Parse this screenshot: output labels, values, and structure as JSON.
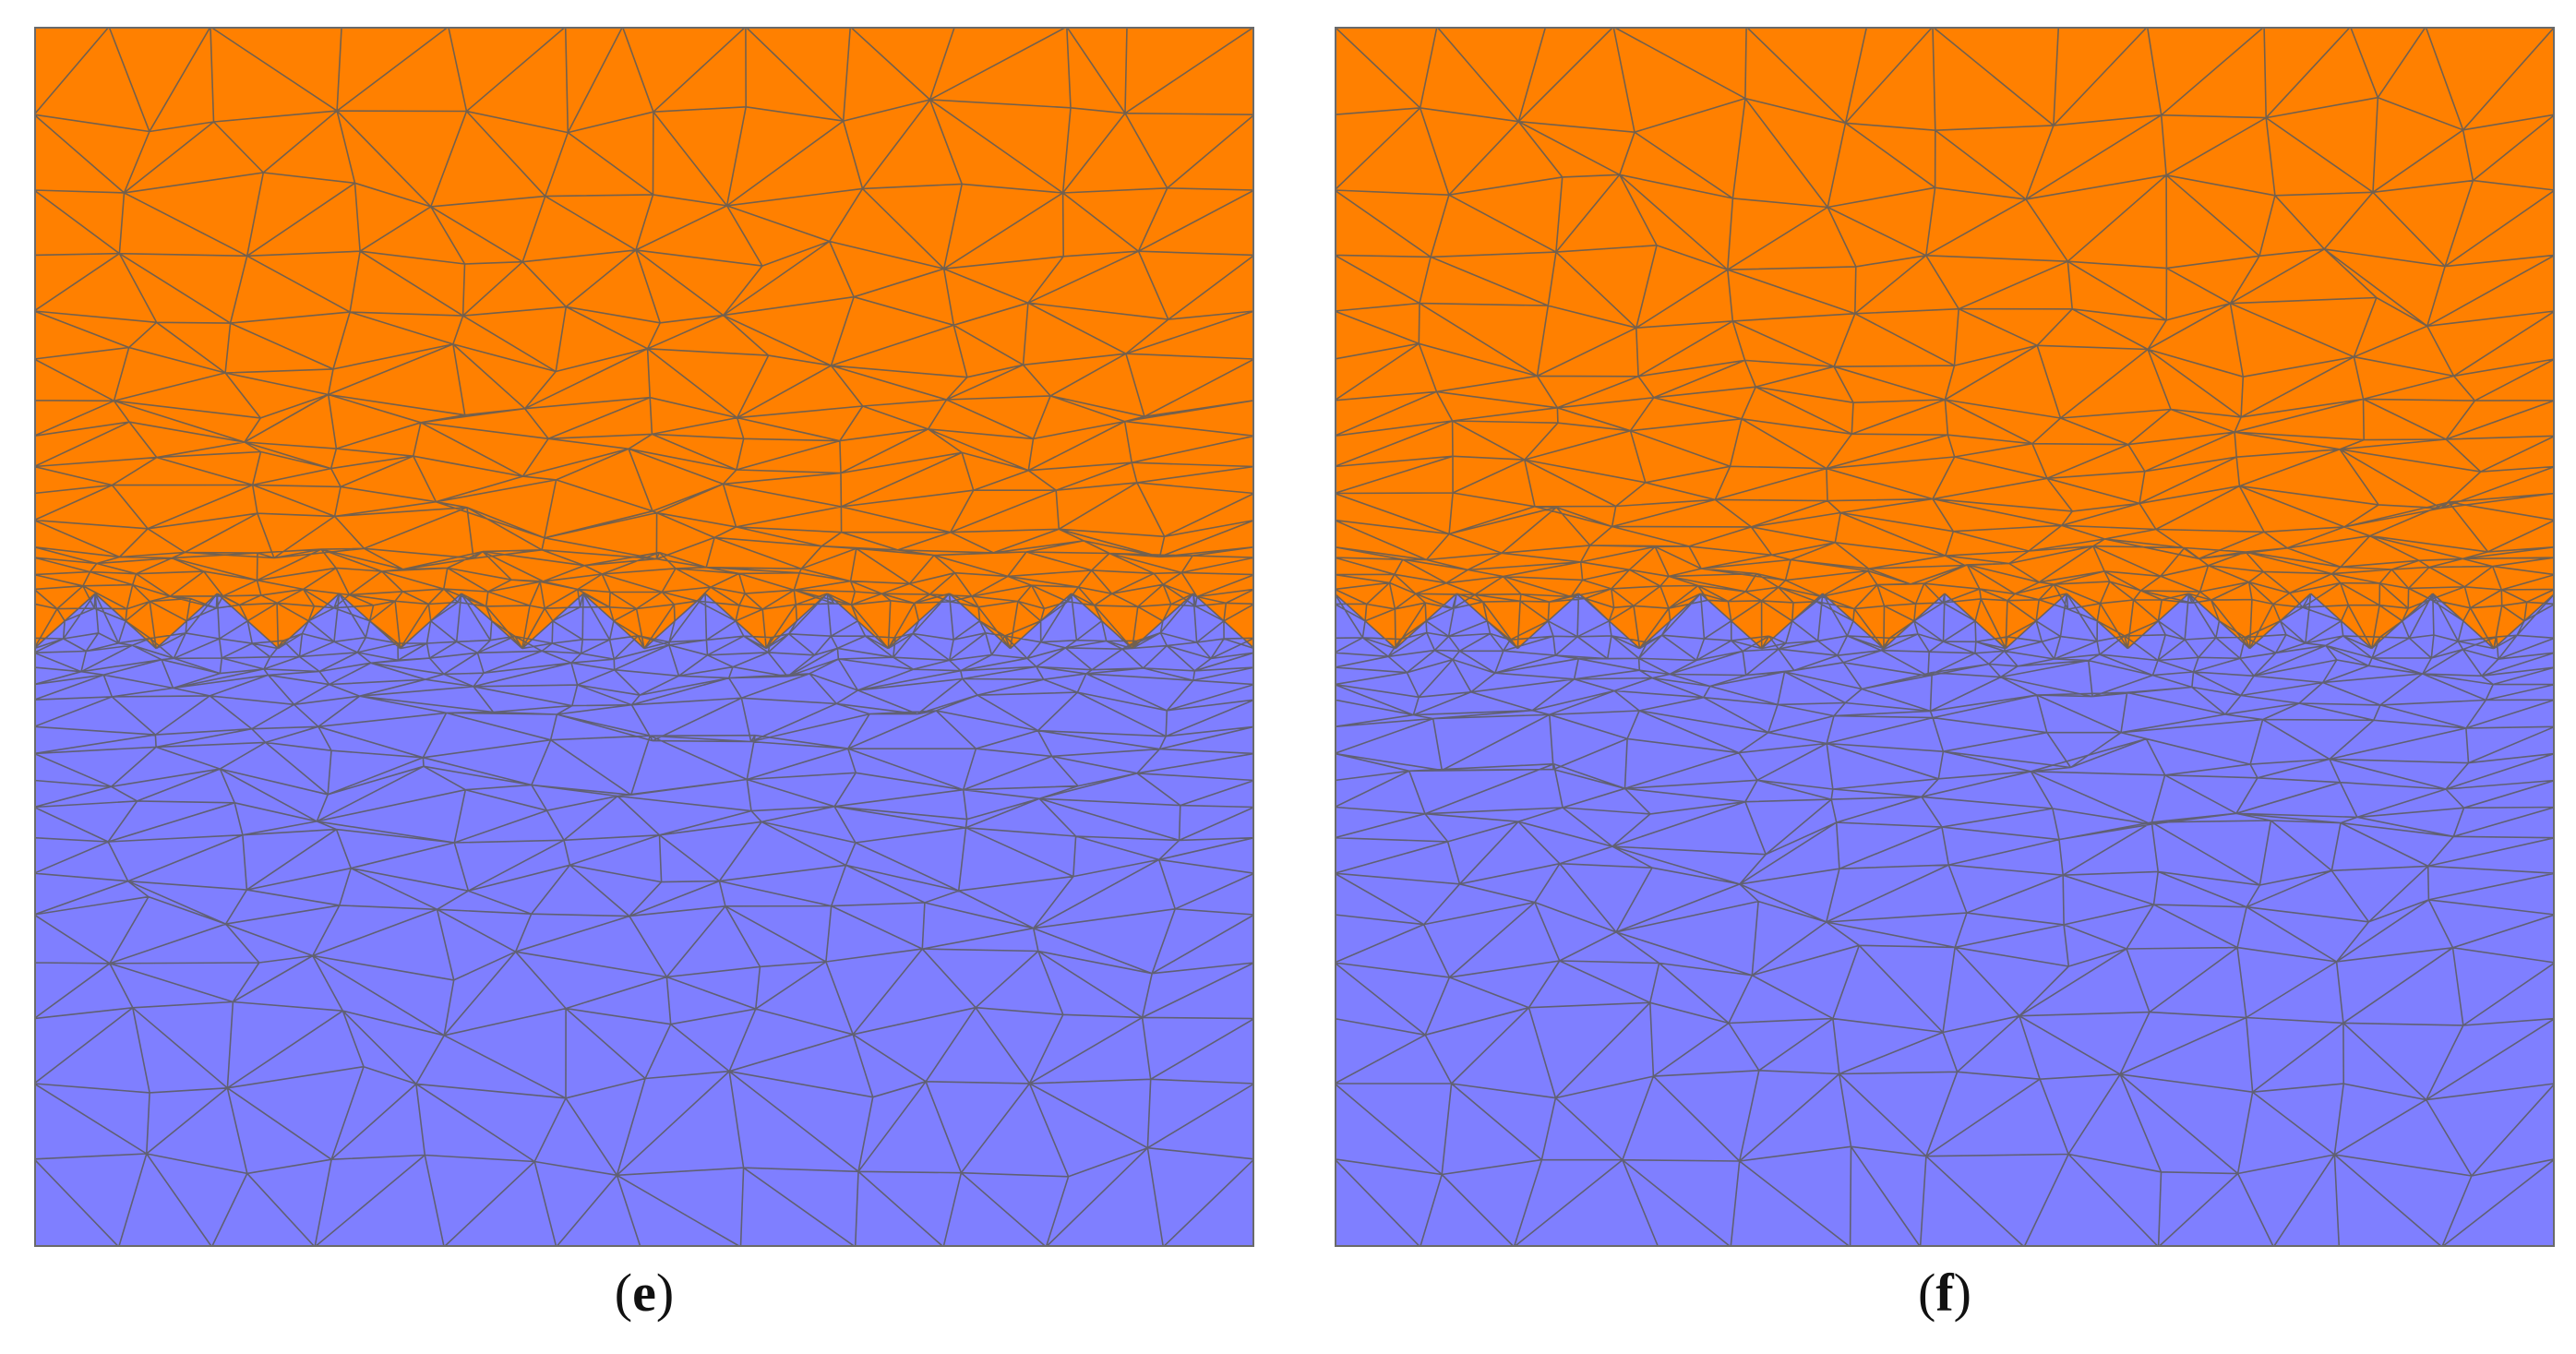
{
  "panels": [
    {
      "id": "e",
      "label_open": "(",
      "label_letter": "e",
      "label_close": ")",
      "teeth": 10,
      "phase": "trough-at-edges",
      "upper_fill": "#ff8000",
      "lower_fill": "#7f7fff",
      "mesh_line": "#5a5a5a"
    },
    {
      "id": "f",
      "label_open": "(",
      "label_letter": "f",
      "label_close": ")",
      "teeth": 10,
      "phase": "peak-at-edges",
      "upper_fill": "#ff8000",
      "lower_fill": "#7f7fff",
      "mesh_line": "#5a5a5a"
    }
  ]
}
